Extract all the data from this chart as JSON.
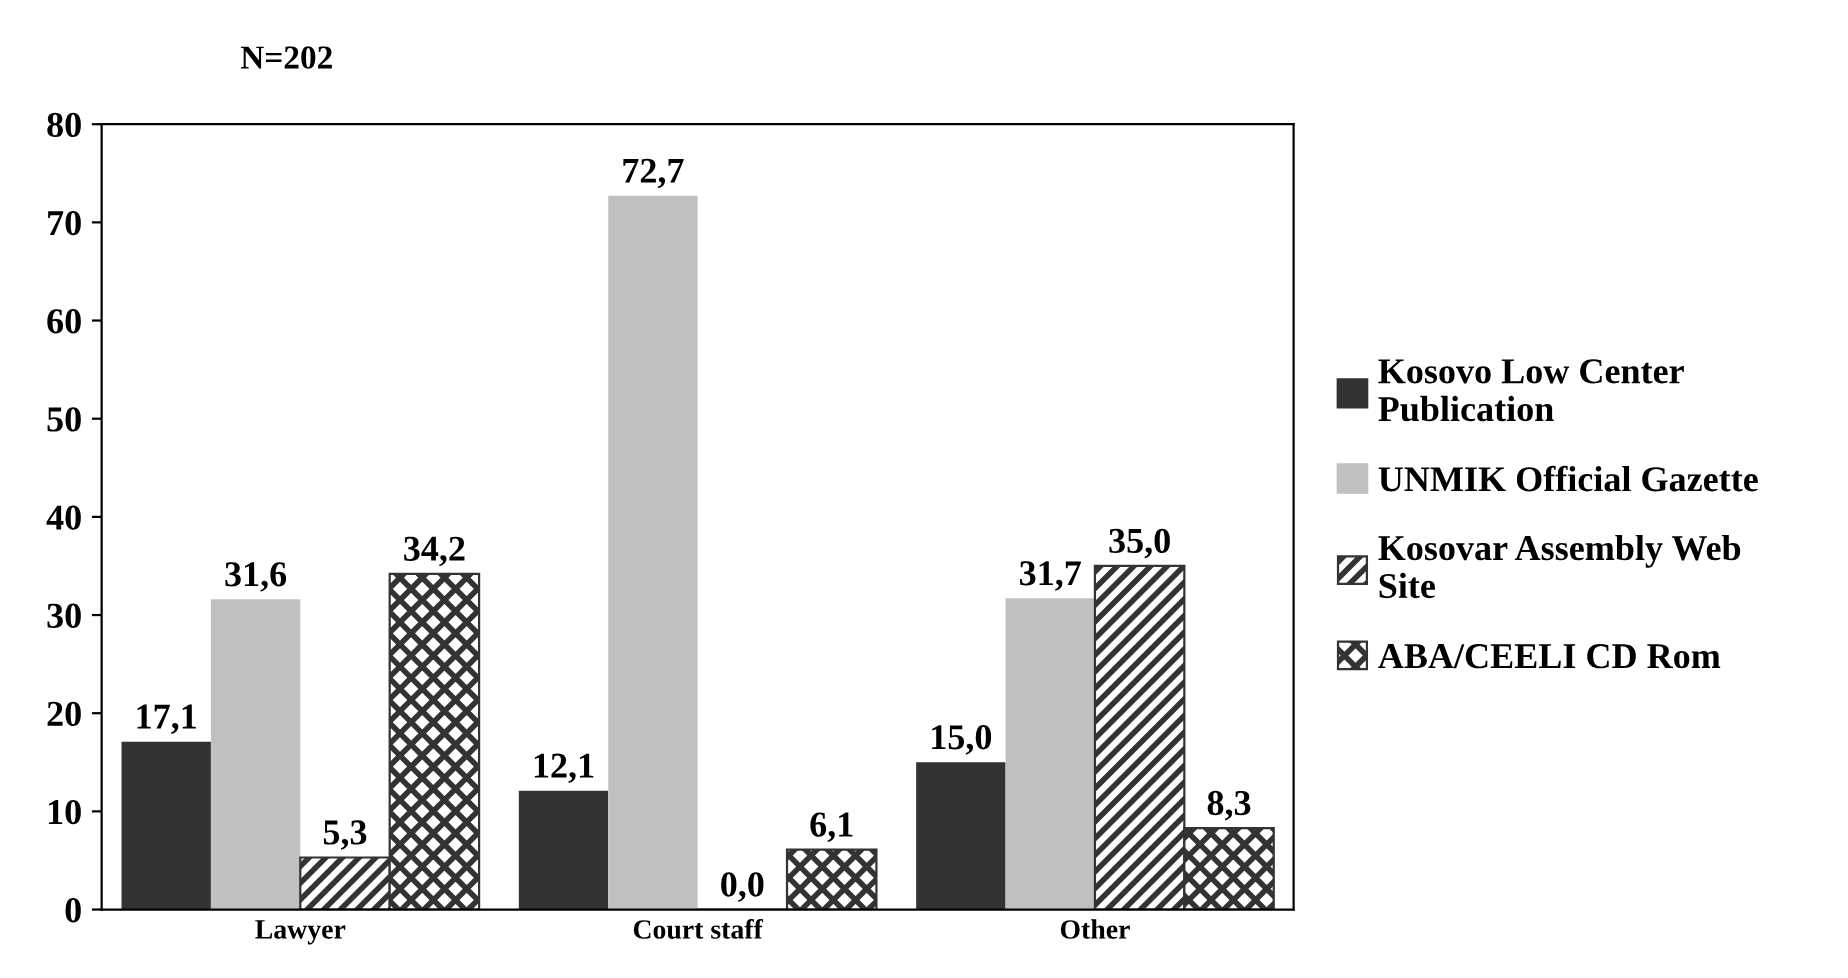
{
  "chart_data": {
    "type": "bar",
    "title": "N=202",
    "categories": [
      "Lawyer",
      "Court staff",
      "Other"
    ],
    "series": [
      {
        "name": "Kosovo Low Center\nPublication",
        "color": "#333333",
        "values": [
          17.1,
          12.1,
          15.0
        ],
        "value_labels": [
          "17,1",
          "12,1",
          "15,0"
        ]
      },
      {
        "name": "UNMIK Official Gazette",
        "color": "#c0c0c0",
        "values": [
          31.6,
          72.7,
          31.7
        ],
        "value_labels": [
          "31,6",
          "72,7",
          "31,7"
        ]
      },
      {
        "name": "Kosovar Assembly Web\nSite",
        "color": "#333333",
        "values": [
          5.3,
          0.0,
          35.0
        ],
        "value_labels": [
          "5,3",
          "0,0",
          "35,0"
        ]
      },
      {
        "name": "ABA/CEELI CD Rom",
        "color": "#333333",
        "values": [
          34.2,
          6.1,
          8.3
        ],
        "value_labels": [
          "34,2",
          "6,1",
          "8,3"
        ]
      }
    ],
    "ylim": [
      0,
      80
    ],
    "yticks": [
      0,
      10,
      20,
      30,
      40,
      50,
      60,
      70,
      80
    ],
    "grid": false,
    "legend": "right"
  }
}
